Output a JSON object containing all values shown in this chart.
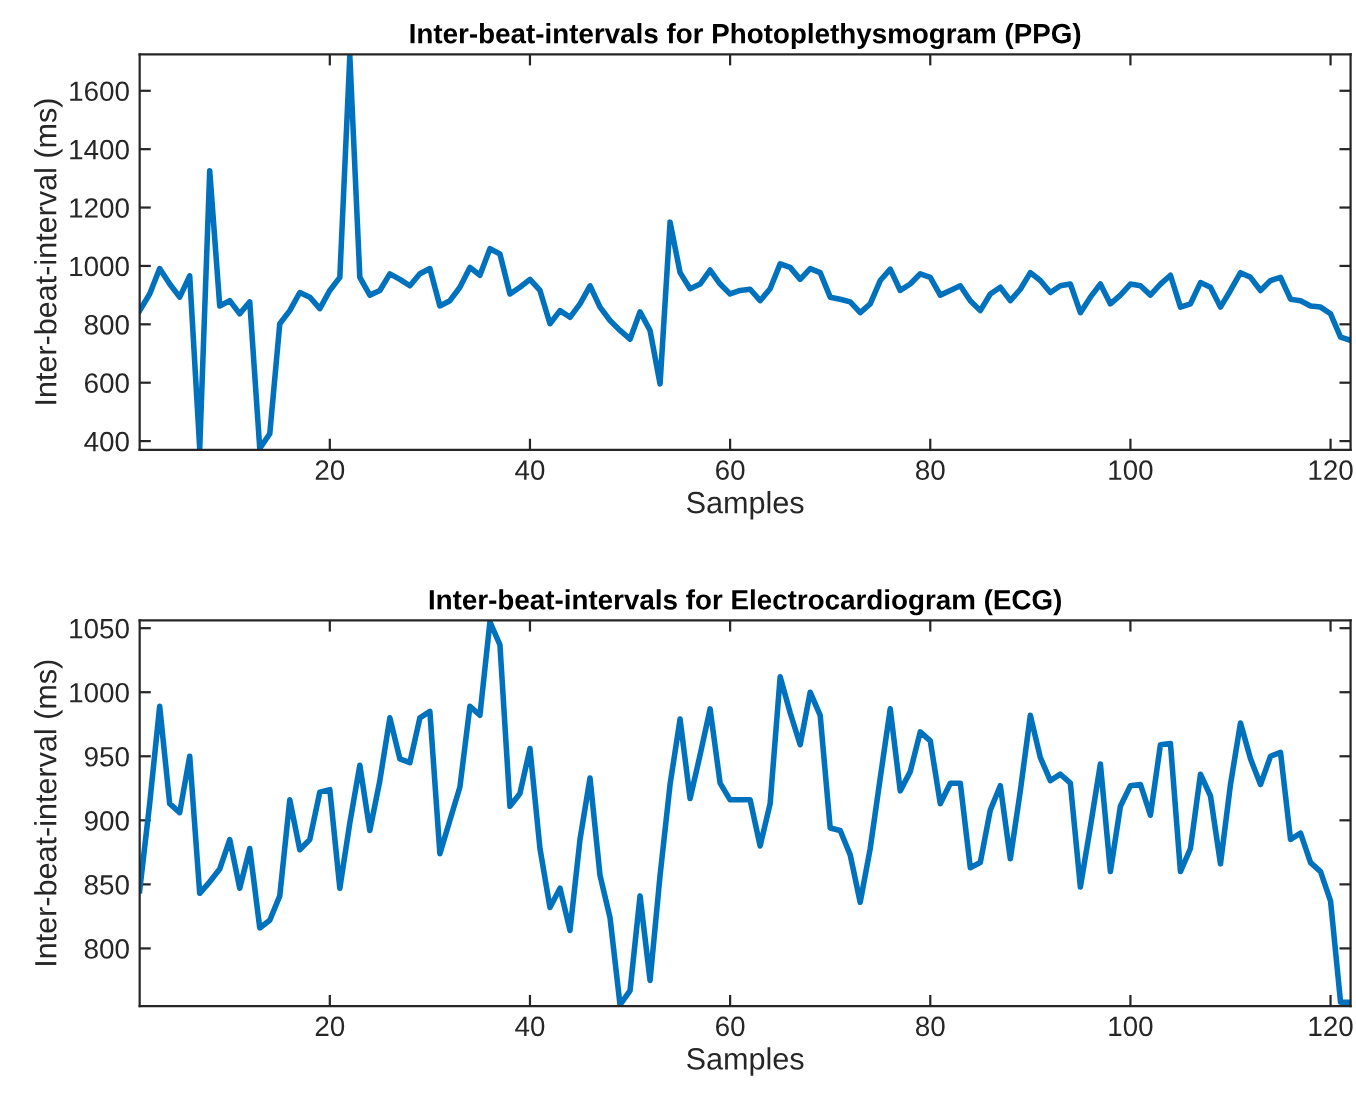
{
  "chart_data": [
    {
      "type": "line",
      "title": "Inter-beat-intervals for Photoplethysmogram (PPG)",
      "xlabel": "Samples",
      "ylabel": "Inter-beat-interval (ms)",
      "x": [
        1,
        2,
        3,
        4,
        5,
        6,
        7,
        8,
        9,
        10,
        11,
        12,
        13,
        14,
        15,
        16,
        17,
        18,
        19,
        20,
        21,
        22,
        23,
        24,
        25,
        26,
        27,
        28,
        29,
        30,
        31,
        32,
        33,
        34,
        35,
        36,
        37,
        38,
        39,
        40,
        41,
        42,
        43,
        44,
        45,
        46,
        47,
        48,
        49,
        50,
        51,
        52,
        53,
        54,
        55,
        56,
        57,
        58,
        59,
        60,
        61,
        62,
        63,
        64,
        65,
        66,
        67,
        68,
        69,
        70,
        71,
        72,
        73,
        74,
        75,
        76,
        77,
        78,
        79,
        80,
        81,
        82,
        83,
        84,
        85,
        86,
        87,
        88,
        89,
        90,
        91,
        92,
        93,
        94,
        95,
        96,
        97,
        98,
        99,
        100,
        101,
        102,
        103,
        104,
        105,
        106,
        107,
        108,
        109,
        110,
        111,
        112,
        113,
        114,
        115,
        116,
        117,
        118,
        119,
        120,
        121,
        122
      ],
      "series": [
        {
          "color": "#0072bd",
          "values": [
            847,
            904,
            991,
            938,
            893,
            966,
            375,
            1326,
            863,
            881,
            836,
            877,
            375,
            425,
            802,
            847,
            909,
            893,
            854,
            916,
            961,
            1720,
            961,
            900,
            916,
            973,
            954,
            932,
            973,
            991,
            863,
            881,
            927,
            995,
            968,
            1059,
            1041,
            904,
            927,
            954,
            916,
            802,
            847,
            824,
            870,
            932,
            859,
            813,
            779,
            749,
            843,
            779,
            596,
            1150,
            977,
            922,
            938,
            986,
            938,
            904,
            916,
            920,
            881,
            922,
            1007,
            995,
            954,
            991,
            977,
            893,
            886,
            877,
            840,
            870,
            950,
            989,
            916,
            938,
            973,
            961,
            900,
            916,
            932,
            881,
            847,
            904,
            927,
            881,
            920,
            977,
            950,
            909,
            932,
            938,
            840,
            893,
            938,
            870,
            900,
            938,
            932,
            900,
            938,
            968,
            859,
            870,
            943,
            927,
            859,
            916,
            977,
            961,
            916,
            950,
            961,
            886,
            881,
            863,
            859,
            836,
            756,
            745
          ]
        }
      ],
      "xlim": [
        1,
        122
      ],
      "ylim": [
        370,
        1725
      ],
      "xticks": [
        20,
        40,
        60,
        80,
        100,
        120
      ],
      "yticks": [
        400,
        600,
        800,
        1000,
        1200,
        1400,
        1600
      ],
      "grid": false
    },
    {
      "type": "line",
      "title": "Inter-beat-intervals for Electrocardiogram (ECG)",
      "xlabel": "Samples",
      "ylabel": "Inter-beat-interval (ms)",
      "x": [
        1,
        2,
        3,
        4,
        5,
        6,
        7,
        8,
        9,
        10,
        11,
        12,
        13,
        14,
        15,
        16,
        17,
        18,
        19,
        20,
        21,
        22,
        23,
        24,
        25,
        26,
        27,
        28,
        29,
        30,
        31,
        32,
        33,
        34,
        35,
        36,
        37,
        38,
        39,
        40,
        41,
        42,
        43,
        44,
        45,
        46,
        47,
        48,
        49,
        50,
        51,
        52,
        53,
        54,
        55,
        56,
        57,
        58,
        59,
        60,
        61,
        62,
        63,
        64,
        65,
        66,
        67,
        68,
        69,
        70,
        71,
        72,
        73,
        74,
        75,
        76,
        77,
        78,
        79,
        80,
        81,
        82,
        83,
        84,
        85,
        86,
        87,
        88,
        89,
        90,
        91,
        92,
        93,
        94,
        95,
        96,
        97,
        98,
        99,
        100,
        101,
        102,
        103,
        104,
        105,
        106,
        107,
        108,
        109,
        110,
        111,
        112,
        113,
        114,
        115,
        116,
        117,
        118,
        119,
        120,
        121,
        122
      ],
      "series": [
        {
          "color": "#0072bd",
          "values": [
            845,
            913,
            989,
            913,
            906,
            950,
            843,
            852,
            862,
            885,
            847,
            878,
            816,
            822,
            841,
            916,
            877,
            885,
            922,
            924,
            847,
            898,
            943,
            892,
            931,
            980,
            948,
            945,
            980,
            985,
            874,
            900,
            926,
            989,
            982,
            1055,
            1037,
            911,
            921,
            956,
            878,
            832,
            847,
            814,
            885,
            933,
            857,
            824,
            756,
            767,
            841,
            775,
            857,
            928,
            979,
            917,
            951,
            987,
            929,
            916,
            916,
            916,
            880,
            913,
            1012,
            984,
            959,
            1000,
            982,
            894,
            892,
            873,
            836,
            878,
            933,
            987,
            923,
            938,
            969,
            962,
            913,
            929,
            929,
            863,
            867,
            908,
            927,
            870,
            923,
            982,
            949,
            931,
            936,
            929,
            848,
            895,
            944,
            860,
            911,
            927,
            928,
            904,
            959,
            960,
            860,
            878,
            936,
            919,
            866,
            928,
            976,
            948,
            928,
            950,
            953,
            885,
            890,
            867,
            860,
            837,
            758,
            758
          ]
        }
      ],
      "xlim": [
        1,
        122
      ],
      "ylim": [
        755,
        1056
      ],
      "xticks": [
        20,
        40,
        60,
        80,
        100,
        120
      ],
      "yticks": [
        800,
        850,
        900,
        950,
        1000,
        1050
      ],
      "grid": false
    }
  ]
}
